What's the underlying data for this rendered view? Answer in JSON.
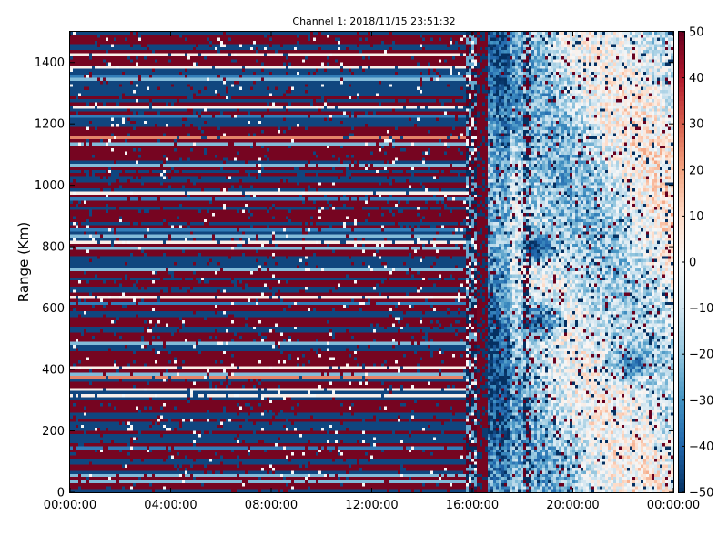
{
  "chart_data": {
    "type": "heatmap",
    "title": "Channel 1: 2018/11/15 23:51:32",
    "xlabel": "",
    "ylabel": "Range (Km)",
    "x_ticks": [
      "00:00:00",
      "04:00:00",
      "08:00:00",
      "12:00:00",
      "16:00:00",
      "20:00:00",
      "00:00:00"
    ],
    "x_range_hours": [
      0,
      24
    ],
    "y_ticks": [
      0,
      200,
      400,
      600,
      800,
      1000,
      1200,
      1400
    ],
    "ylim": [
      0,
      1500
    ],
    "colorbar": {
      "ticks": [
        50,
        40,
        30,
        20,
        10,
        0,
        -10,
        -20,
        -30,
        -40,
        -50
      ],
      "range": [
        -50,
        50
      ],
      "colormap": "RdBu_r",
      "colors": [
        "#053061",
        "#2166ac",
        "#4393c3",
        "#92c5de",
        "#d1e5f0",
        "#f7f7f7",
        "#fddbc7",
        "#f4a582",
        "#d6604d",
        "#b2182b",
        "#67001f"
      ]
    },
    "grid": false,
    "regions": [
      {
        "label": "striped interference",
        "x_range_hours": [
          0,
          15.7
        ],
        "pattern": "alternating horizontal bands of about -45 and +45"
      },
      {
        "label": "transition column",
        "x_range_hours": [
          15.7,
          16.6
        ],
        "pattern": "mixed saturated values"
      },
      {
        "label": "echo field",
        "x_range_hours": [
          16.6,
          24
        ],
        "pattern": "mostly -30..+15 with strong negative patches near 18-19 h at 500-600 km and 750-850 km"
      }
    ]
  }
}
